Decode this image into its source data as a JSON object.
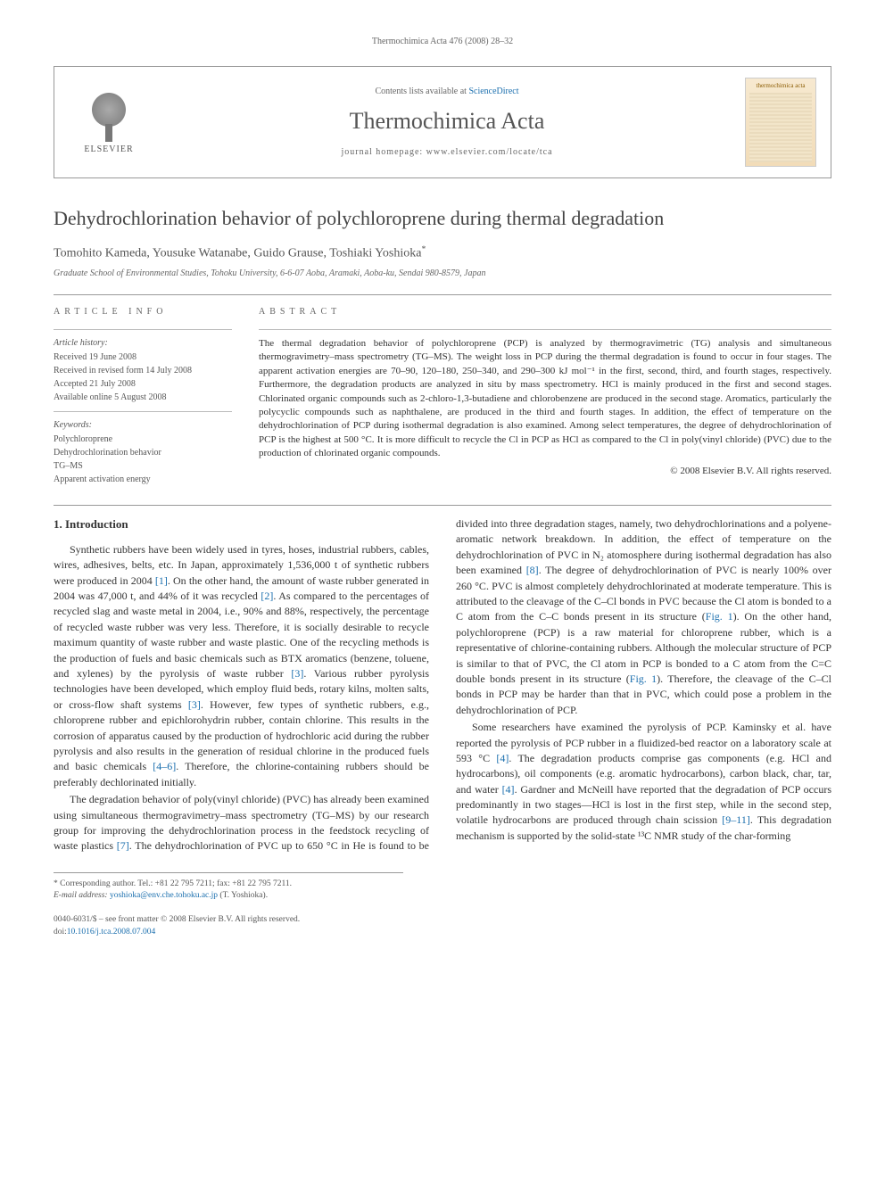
{
  "running_header": "Thermochimica Acta 476 (2008) 28–32",
  "masthead": {
    "contents_prefix": "Contents lists available at ",
    "contents_link": "ScienceDirect",
    "journal_name": "Thermochimica Acta",
    "homepage_label": "journal homepage: ",
    "homepage_url": "www.elsevier.com/locate/tca",
    "publisher_label": "ELSEVIER",
    "cover_title": "thermochimica acta"
  },
  "article": {
    "title": "Dehydrochlorination behavior of polychloroprene during thermal degradation",
    "authors": "Tomohito Kameda, Yousuke Watanabe, Guido Grause, Toshiaki Yoshioka",
    "corresponding_marker": "*",
    "affiliation": "Graduate School of Environmental Studies, Tohoku University, 6-6-07 Aoba, Aramaki, Aoba-ku, Sendai 980-8579, Japan"
  },
  "info": {
    "heading": "article info",
    "history_label": "Article history:",
    "received": "Received 19 June 2008",
    "revised": "Received in revised form 14 July 2008",
    "accepted": "Accepted 21 July 2008",
    "online": "Available online 5 August 2008",
    "keywords_label": "Keywords:",
    "kw1": "Polychloroprene",
    "kw2": "Dehydrochlorination behavior",
    "kw3": "TG–MS",
    "kw4": "Apparent activation energy"
  },
  "abstract": {
    "heading": "abstract",
    "text": "The thermal degradation behavior of polychloroprene (PCP) is analyzed by thermogravimetric (TG) analysis and simultaneous thermogravimetry–mass spectrometry (TG–MS). The weight loss in PCP during the thermal degradation is found to occur in four stages. The apparent activation energies are 70–90, 120–180, 250–340, and 290–300 kJ mol⁻¹ in the first, second, third, and fourth stages, respectively. Furthermore, the degradation products are analyzed in situ by mass spectrometry. HCl is mainly produced in the first and second stages. Chlorinated organic compounds such as 2-chloro-1,3-butadiene and chlorobenzene are produced in the second stage. Aromatics, particularly the polycyclic compounds such as naphthalene, are produced in the third and fourth stages. In addition, the effect of temperature on the dehydrochlorination of PCP during isothermal degradation is also examined. Among select temperatures, the degree of dehydrochlorination of PCP is the highest at 500 °C. It is more difficult to recycle the Cl in PCP as HCl as compared to the Cl in poly(vinyl chloride) (PVC) due to the production of chlorinated organic compounds.",
    "copyright": "© 2008 Elsevier B.V. All rights reserved."
  },
  "body": {
    "section1_heading": "1.   Introduction",
    "p1a": "Synthetic rubbers have been widely used in tyres, hoses, industrial rubbers, cables, wires, adhesives, belts, etc. In Japan, approximately 1,536,000 t of synthetic rubbers were produced in 2004 ",
    "c1": "[1]",
    "p1b": ". On the other hand, the amount of waste rubber generated in 2004 was 47,000 t, and 44% of it was recycled ",
    "c2": "[2]",
    "p1c": ". As compared to the percentages of recycled slag and waste metal in 2004, i.e., 90% and 88%, respectively, the percentage of recycled waste rubber was very less. Therefore, it is socially desirable to recycle maximum quantity of waste rubber and waste plastic. One of the recycling methods is the production of fuels and basic chemicals such as BTX aromatics (benzene, toluene, and xylenes) by the pyrolysis of waste rubber ",
    "c3": "[3]",
    "p1d": ". Various rubber pyrolysis technologies have been developed, which employ fluid beds, rotary kilns, molten salts, or cross-flow shaft systems ",
    "c3b": "[3]",
    "p1e": ". However, few types of synthetic rubbers, e.g., chloroprene rubber and epichlorohydrin rubber, contain chlorine. This results in the corrosion of apparatus caused by the production of hydrochloric acid during the rubber pyrolysis and also results in the generation of residual chlorine in the produced fuels and basic chemicals ",
    "c46": "[4–6]",
    "p1f": ". Therefore, the chlorine-containing rubbers should be preferably dechlorinated initially.",
    "p2a": "The degradation behavior of poly(vinyl chloride) (PVC) has already been examined using simultaneous thermogravimetry–",
    "p2b": "mass spectrometry (TG–MS) by our research group for improving the dehydrochlorination process in the feedstock recycling of waste plastics ",
    "c7": "[7]",
    "p2c": ". The dehydrochlorination of PVC up to 650 °C in He is found to be divided into three degradation stages, namely, two dehydrochlorinations and a polyene-aromatic network breakdown. In addition, the effect of temperature on the dehydrochlorination of PVC in N₂ atomosphere during isothermal degradation has also been examined ",
    "c8": "[8]",
    "p2d": ". The degree of dehydrochlorination of PVC is nearly 100% over 260 °C. PVC is almost completely dehydrochlorinated at moderate temperature. This is attributed to the cleavage of the C–Cl bonds in PVC because the Cl atom is bonded to a C atom from the C–C bonds present in its structure (",
    "fig1a": "Fig. 1",
    "p2e": "). On the other hand, polychloroprene (PCP) is a raw material for chloroprene rubber, which is a representative of chlorine-containing rubbers. Although the molecular structure of PCP is similar to that of PVC, the Cl atom in PCP is bonded to a C atom from the C=C double bonds present in its structure (",
    "fig1b": "Fig. 1",
    "p2f": "). Therefore, the cleavage of the C–Cl bonds in PCP may be harder than that in PVC, which could pose a problem in the dehydrochlorination of PCP.",
    "p3a": "Some researchers have examined the pyrolysis of PCP. Kaminsky et al. have reported the pyrolysis of PCP rubber in a fluidized-bed reactor on a laboratory scale at 593 °C ",
    "c4": "[4]",
    "p3b": ". The degradation products comprise gas components (e.g. HCl and hydrocarbons), oil components (e.g. aromatic hydrocarbons), carbon black, char, tar, and water ",
    "c4b": "[4]",
    "p3c": ". Gardner and McNeill have reported that the degradation of PCP occurs predominantly in two stages—HCl is lost in the first step, while in the second step, volatile hydrocarbons are produced through chain scission ",
    "c911": "[9–11]",
    "p3d": ". This degradation mechanism is supported by the solid-state ¹³C NMR study of the char-forming"
  },
  "footnotes": {
    "corr_label": "* Corresponding author. Tel.: +81 22 795 7211; fax: +81 22 795 7211.",
    "email_label": "E-mail address: ",
    "email": "yoshioka@env.che.tohoku.ac.jp",
    "email_person": " (T. Yoshioka)."
  },
  "bottom": {
    "front_matter": "0040-6031/$ – see front matter © 2008 Elsevier B.V. All rights reserved.",
    "doi_label": "doi:",
    "doi": "10.1016/j.tca.2008.07.004"
  },
  "colors": {
    "link": "#1b6fae",
    "text": "#333333",
    "muted": "#666666",
    "rule": "#999999"
  }
}
